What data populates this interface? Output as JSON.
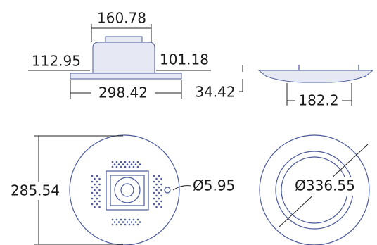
{
  "side_view": {
    "width_top": "160.78",
    "height_left": "112.95",
    "height_right": "101.18",
    "width_base": "298.42"
  },
  "profile_view": {
    "thickness": "34.42",
    "width": "182.2"
  },
  "front_view": {
    "height": "285.54",
    "hole": "Ø5.95"
  },
  "back_view": {
    "diameter": "Ø336.55"
  }
}
